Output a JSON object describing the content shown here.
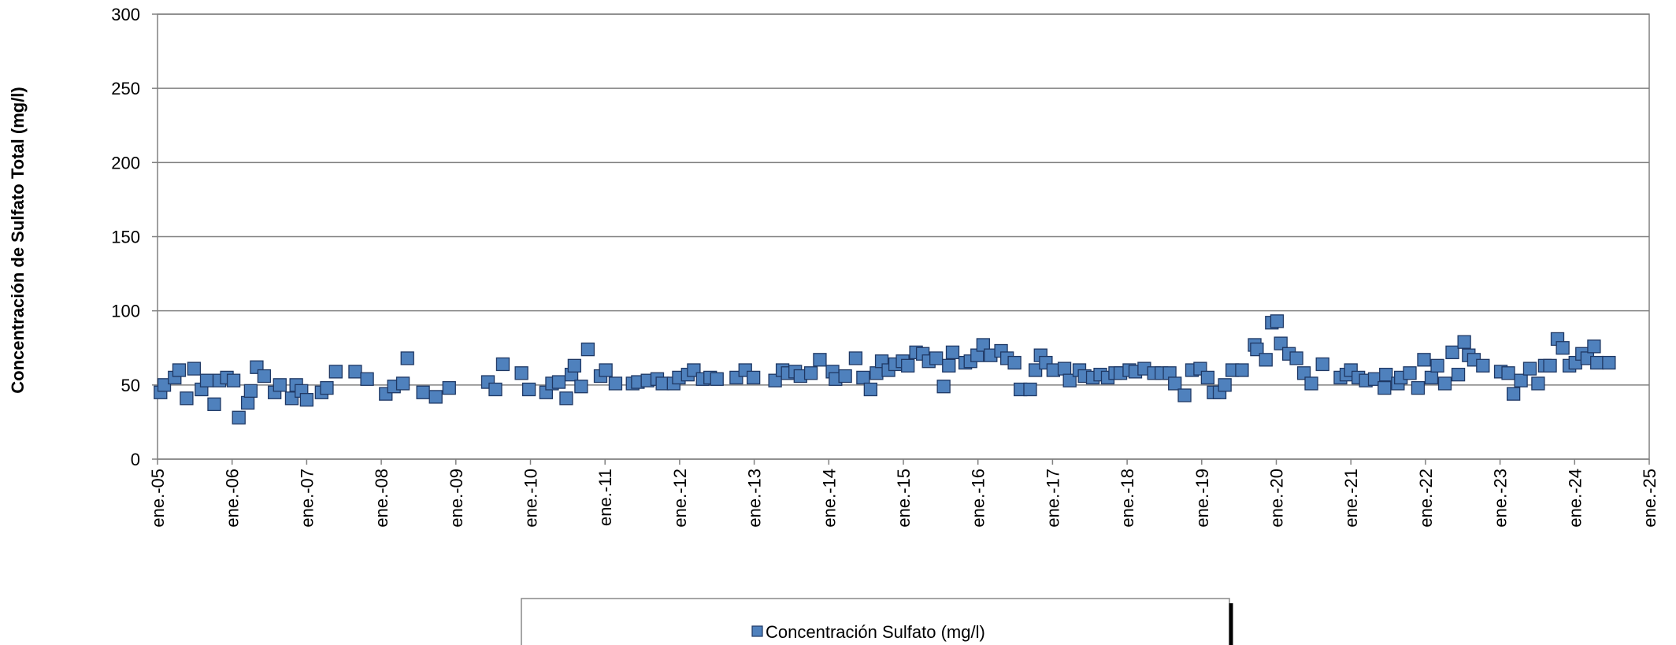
{
  "chart_data": {
    "type": "scatter",
    "y_label": "Concentración de Sulfato Total (mg/l)",
    "xlim": [
      2005,
      2025
    ],
    "xticks": [
      {
        "value": 2005,
        "label": "ene.-05"
      },
      {
        "value": 2006,
        "label": "ene.-06"
      },
      {
        "value": 2007,
        "label": "ene.-07"
      },
      {
        "value": 2008,
        "label": "ene.-08"
      },
      {
        "value": 2009,
        "label": "ene.-09"
      },
      {
        "value": 2010,
        "label": "ene.-10"
      },
      {
        "value": 2011,
        "label": "ene.-11"
      },
      {
        "value": 2012,
        "label": "ene.-12"
      },
      {
        "value": 2013,
        "label": "ene.-13"
      },
      {
        "value": 2014,
        "label": "ene.-14"
      },
      {
        "value": 2015,
        "label": "ene.-15"
      },
      {
        "value": 2016,
        "label": "ene.-16"
      },
      {
        "value": 2017,
        "label": "ene.-17"
      },
      {
        "value": 2018,
        "label": "ene.-18"
      },
      {
        "value": 2019,
        "label": "ene.-19"
      },
      {
        "value": 2020,
        "label": "ene.-20"
      },
      {
        "value": 2021,
        "label": "ene.-21"
      },
      {
        "value": 2022,
        "label": "ene.-22"
      },
      {
        "value": 2023,
        "label": "ene.-23"
      },
      {
        "value": 2024,
        "label": "ene.-24"
      },
      {
        "value": 2025,
        "label": "ene.-25"
      }
    ],
    "ylim": [
      0,
      300
    ],
    "yticks": [
      0,
      50,
      100,
      150,
      200,
      250,
      300
    ],
    "grid": true,
    "legend": "bottom",
    "series": [
      {
        "name": "Concentración Sulfato (mg/l)",
        "color": "#4f81bd",
        "x": [
          2005.04,
          2005.09,
          2005.23,
          2005.29,
          2005.39,
          2005.49,
          2005.59,
          2005.66,
          2005.76,
          2005.83,
          2005.93,
          2006.02,
          2006.09,
          2006.21,
          2006.25,
          2006.33,
          2006.43,
          2006.57,
          2006.64,
          2006.8,
          2006.86,
          2006.93,
          2007.0,
          2007.2,
          2007.27,
          2007.39,
          2007.65,
          2007.81,
          2008.06,
          2008.17,
          2008.29,
          2008.35,
          2008.56,
          2008.73,
          2008.91,
          2009.43,
          2009.53,
          2009.63,
          2009.88,
          2009.98,
          2010.21,
          2010.29,
          2010.38,
          2010.48,
          2010.55,
          2010.59,
          2010.68,
          2010.77,
          2010.94,
          2011.01,
          2011.14,
          2011.37,
          2011.44,
          2011.57,
          2011.7,
          2011.77,
          2011.92,
          2011.99,
          2012.11,
          2012.19,
          2012.31,
          2012.41,
          2012.5,
          2012.76,
          2012.88,
          2012.99,
          2013.28,
          2013.38,
          2013.45,
          2013.55,
          2013.62,
          2013.76,
          2013.88,
          2014.05,
          2014.09,
          2014.22,
          2014.36,
          2014.46,
          2014.56,
          2014.64,
          2014.71,
          2014.8,
          2014.89,
          2014.99,
          2015.06,
          2015.17,
          2015.26,
          2015.34,
          2015.44,
          2015.54,
          2015.61,
          2015.66,
          2015.83,
          2015.9,
          2015.99,
          2016.07,
          2016.17,
          2016.31,
          2016.39,
          2016.49,
          2016.57,
          2016.7,
          2016.77,
          2016.84,
          2016.91,
          2017.01,
          2017.16,
          2017.23,
          2017.36,
          2017.43,
          2017.54,
          2017.64,
          2017.74,
          2017.84,
          2017.91,
          2018.03,
          2018.11,
          2018.23,
          2018.36,
          2018.46,
          2018.57,
          2018.64,
          2018.77,
          2018.87,
          2018.98,
          2019.08,
          2019.16,
          2019.24,
          2019.31,
          2019.41,
          2019.54,
          2019.71,
          2019.74,
          2019.86,
          2019.94,
          2020.01,
          2020.06,
          2020.17,
          2020.27,
          2020.37,
          2020.47,
          2020.62,
          2020.86,
          2020.94,
          2021.0,
          2021.1,
          2021.2,
          2021.32,
          2021.45,
          2021.47,
          2021.63,
          2021.67,
          2021.79,
          2021.9,
          2021.98,
          2022.08,
          2022.16,
          2022.26,
          2022.36,
          2022.44,
          2022.52,
          2022.58,
          2022.65,
          2022.77,
          2023.01,
          2023.11,
          2023.18,
          2023.28,
          2023.4,
          2023.51,
          2023.6,
          2023.67,
          2023.77,
          2023.84,
          2023.93,
          2024.01,
          2024.1,
          2024.17,
          2024.26,
          2024.3,
          2024.46
        ],
        "values": [
          45,
          50,
          55,
          60,
          41,
          61,
          47,
          53,
          37,
          53,
          55,
          53,
          28,
          38,
          46,
          62,
          56,
          45,
          50,
          41,
          50,
          46,
          40,
          45,
          48,
          59,
          59,
          54,
          44,
          49,
          51,
          68,
          45,
          42,
          48,
          52,
          47,
          64,
          58,
          47,
          45,
          51,
          52,
          41,
          57,
          63,
          49,
          74,
          56,
          60,
          51,
          51,
          52,
          53,
          54,
          51,
          51,
          55,
          57,
          60,
          54,
          55,
          54,
          55,
          60,
          55,
          53,
          60,
          58,
          59,
          56,
          58,
          67,
          59,
          54,
          56,
          68,
          55,
          47,
          58,
          66,
          60,
          64,
          66,
          63,
          72,
          71,
          66,
          68,
          49,
          63,
          72,
          65,
          66,
          70,
          77,
          70,
          73,
          68,
          65,
          47,
          47,
          60,
          70,
          65,
          60,
          61,
          53,
          60,
          56,
          55,
          57,
          55,
          58,
          58,
          60,
          59,
          61,
          58,
          58,
          58,
          51,
          43,
          60,
          61,
          55,
          45,
          45,
          50,
          60,
          60,
          77,
          74,
          67,
          92,
          93,
          78,
          71,
          68,
          58,
          51,
          64,
          55,
          57,
          60,
          55,
          53,
          54,
          48,
          57,
          51,
          55,
          58,
          48,
          67,
          55,
          63,
          51,
          72,
          57,
          79,
          70,
          67,
          63,
          59,
          58,
          44,
          53,
          61,
          51,
          63,
          63,
          81,
          75,
          63,
          65,
          71,
          68,
          76,
          65,
          65
        ]
      }
    ]
  }
}
